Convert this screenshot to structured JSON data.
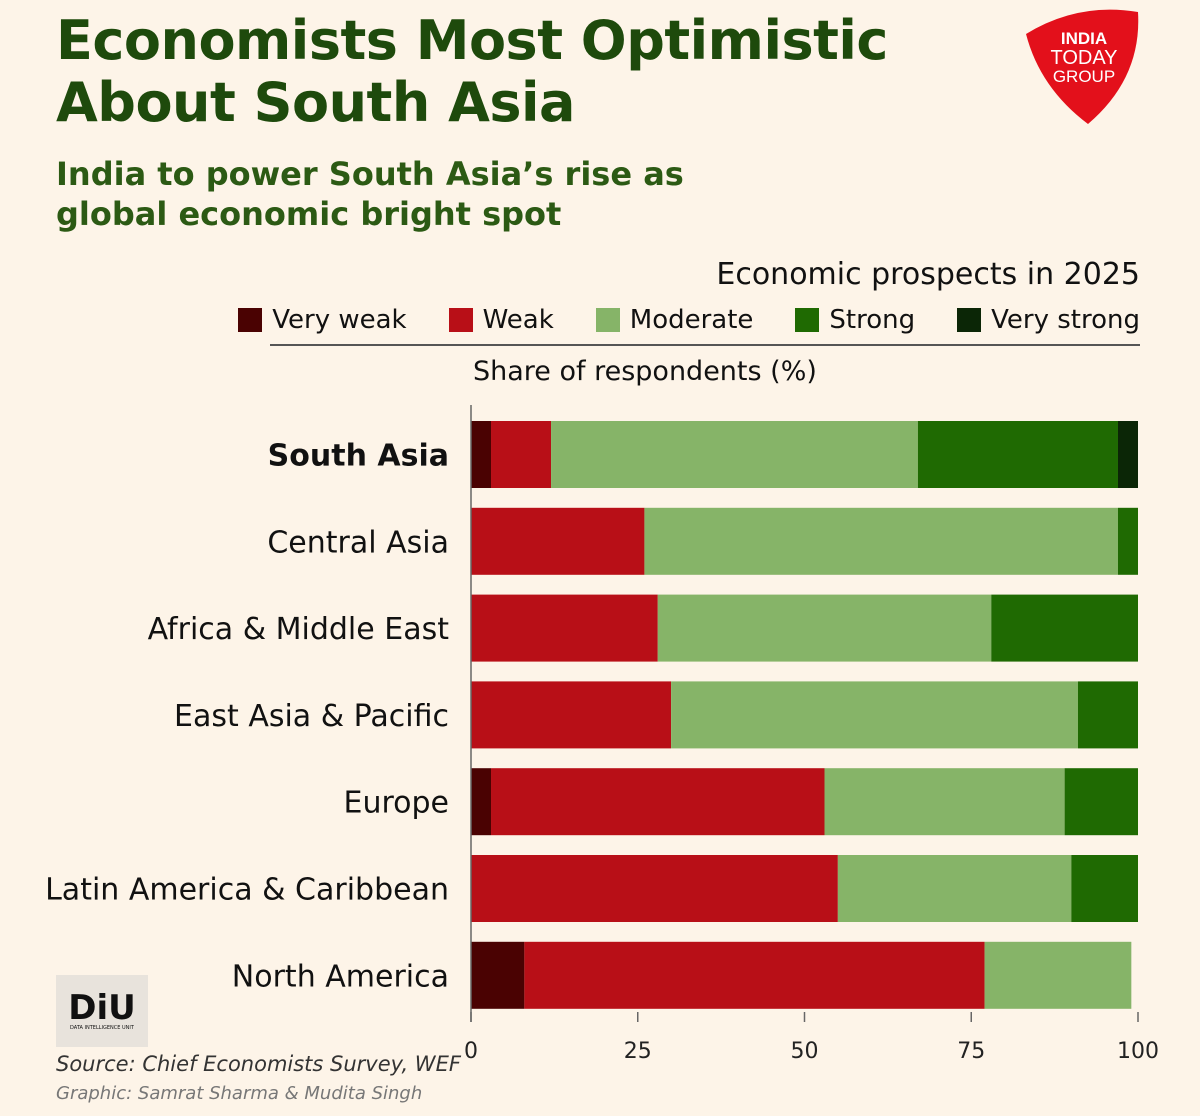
{
  "header": {
    "title_line1": "Economists Most Optimistic",
    "title_line2": "About South Asia",
    "subtitle_line1": "India to power South Asia’s rise as",
    "subtitle_line2": "global economic bright spot",
    "logo_text": [
      "INDIA",
      "TODAY",
      "GROUP"
    ]
  },
  "footer": {
    "source": "Source: Chief Economists Survey, WEF",
    "credit": "Graphic: Samrat Sharma & Mudita Singh",
    "diu_logo_text": "DIU",
    "diu_logo_sub": "DATA INTELLIGENCE UNIT"
  },
  "chart_data": {
    "type": "bar",
    "orientation": "horizontal",
    "stacked": true,
    "title": "Economic prospects in 2025",
    "xlabel": "Share of respondents (%)",
    "xlim": [
      0,
      100
    ],
    "xticks": [
      "0",
      "25",
      "50",
      "75",
      "100"
    ],
    "legend_position": "top-right",
    "grid": false,
    "categories": [
      "South Asia",
      "Central Asia",
      "Africa & Middle East",
      "East Asia & Pacific",
      "Europe",
      "Latin America & Caribbean",
      "North America"
    ],
    "highlighted_category": "South Asia",
    "series": [
      {
        "name": "Very weak",
        "color": "#4a0202",
        "values": [
          3,
          0,
          0,
          0,
          3,
          0,
          8
        ]
      },
      {
        "name": "Weak",
        "color": "#b80f17",
        "values": [
          9,
          26,
          28,
          30,
          50,
          55,
          69
        ]
      },
      {
        "name": "Moderate",
        "color": "#86b468",
        "values": [
          55,
          71,
          50,
          61,
          36,
          35,
          22
        ]
      },
      {
        "name": "Strong",
        "color": "#1f6a02",
        "values": [
          30,
          3,
          22,
          9,
          11,
          10,
          0
        ]
      },
      {
        "name": "Very strong",
        "color": "#0b2606",
        "values": [
          3,
          0,
          0,
          0,
          0,
          0,
          0
        ]
      }
    ]
  }
}
